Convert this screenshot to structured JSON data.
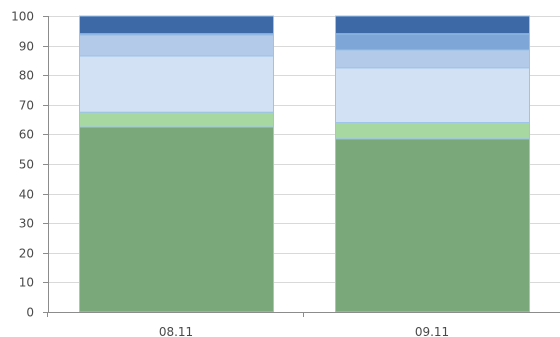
{
  "chart_data": {
    "type": "bar",
    "stacked": true,
    "categories": [
      "08.11",
      "09.11"
    ],
    "ylim": [
      0,
      100
    ],
    "yticks": [
      "0",
      "10",
      "20",
      "30",
      "40",
      "50",
      "60",
      "70",
      "80",
      "90",
      "100"
    ],
    "grid": true,
    "legend": "none",
    "series": [
      {
        "color": "#7aa87a",
        "values": [
          62.5,
          58.5
        ]
      },
      {
        "color": "#a8d8a2",
        "values": [
          5.0,
          5.5
        ]
      },
      {
        "color": "#d2e1f4",
        "values": [
          19.0,
          18.5
        ]
      },
      {
        "color": "#b3cbe8",
        "values": [
          7.0,
          6.0
        ]
      },
      {
        "color": "#7ea6d6",
        "values": [
          0.5,
          5.5
        ]
      },
      {
        "color": "#3d6aa6",
        "values": [
          6.0,
          6.0
        ]
      }
    ]
  }
}
